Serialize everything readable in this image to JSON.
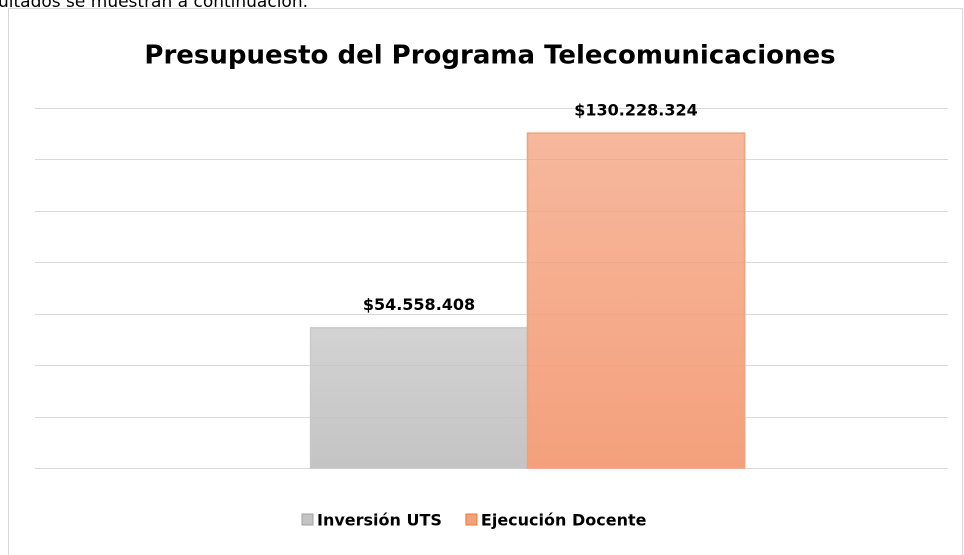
{
  "page_text": "ultados se muestran a continuación.",
  "chart_data": {
    "type": "bar",
    "title": "Presupuesto del Programa Telecomunicaciones",
    "categories": [
      null
    ],
    "series": [
      {
        "name": "Inversión UTS",
        "color": "#c4c4c4",
        "values": [
          54558408
        ],
        "value_labels": [
          "$54.558.408"
        ]
      },
      {
        "name": "Ejecución Docente",
        "color": "#f4a07c",
        "values": [
          130228324
        ],
        "value_labels": [
          "$130.228.324"
        ]
      }
    ],
    "ylim": [
      0,
      140000000
    ],
    "yticks": [
      0,
      20000000,
      40000000,
      60000000,
      80000000,
      100000000,
      120000000,
      140000000
    ],
    "grid": true,
    "legend": "bottom"
  }
}
